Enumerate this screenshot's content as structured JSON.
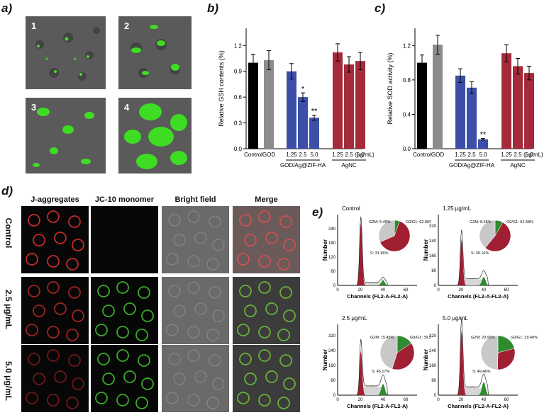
{
  "panels": {
    "a": {
      "letter": "a)",
      "images": [
        "1",
        "2",
        "3",
        "4"
      ]
    },
    "b": {
      "letter": "b)"
    },
    "c": {
      "letter": "c)"
    },
    "d": {
      "letter": "d)",
      "columns": [
        "J-aggregates",
        "JC-10 monomer",
        "Bright field",
        "Merge"
      ],
      "rows": [
        "Control",
        "2.5 μg/mL",
        "5.0 μg/mL"
      ]
    },
    "e": {
      "letter": "e)"
    }
  },
  "chart_data": [
    {
      "id": "b",
      "type": "bar",
      "ylabel": "Relative GSH contents (%)",
      "ylim": [
        0,
        1.4
      ],
      "yticks": [
        "0.0",
        "0.3",
        "0.6",
        "0.9",
        "1.2"
      ],
      "categories": [
        "Control",
        "GOD",
        "1.25",
        "2.5",
        "5.0",
        "1.25",
        "2.5",
        "5.0"
      ],
      "values": [
        1.0,
        1.03,
        0.9,
        0.6,
        0.36,
        1.12,
        0.98,
        1.02
      ],
      "errors": [
        0.1,
        0.11,
        0.09,
        0.05,
        0.03,
        0.1,
        0.09,
        0.1
      ],
      "colors": [
        "#000000",
        "#8c8c8c",
        "#3c4fa8",
        "#3c4fa8",
        "#3c4fa8",
        "#a52a3a",
        "#a52a3a",
        "#a52a3a"
      ],
      "significance": [
        "",
        "",
        "",
        "*",
        "**",
        "",
        "",
        ""
      ],
      "unit_label": "(μg/mL)",
      "group_labels": [
        "GOD/Ag@ZIF-HA",
        "AgNC"
      ]
    },
    {
      "id": "c",
      "type": "bar",
      "ylabel": "Relative SOD activity (%)",
      "ylim": [
        0,
        1.4
      ],
      "yticks": [
        "0.0",
        "0.4",
        "0.8",
        "1.2"
      ],
      "categories": [
        "Control",
        "GOD",
        "1.25",
        "2.5",
        "5.0",
        "1.25",
        "2.5",
        "5.0"
      ],
      "values": [
        1.0,
        1.21,
        0.85,
        0.71,
        0.11,
        1.11,
        0.96,
        0.88
      ],
      "errors": [
        0.09,
        0.11,
        0.08,
        0.07,
        0.01,
        0.1,
        0.09,
        0.08
      ],
      "colors": [
        "#000000",
        "#8c8c8c",
        "#3c4fa8",
        "#3c4fa8",
        "#3c4fa8",
        "#a52a3a",
        "#a52a3a",
        "#a52a3a"
      ],
      "significance": [
        "",
        "",
        "",
        "",
        "**",
        "",
        "",
        ""
      ],
      "unit_label": "(μg/mL)",
      "group_labels": [
        "GOD/Ag@ZIF-HA",
        "AgNC"
      ]
    },
    {
      "id": "e1",
      "type": "area",
      "title": "Control",
      "ylabel": "Number",
      "xlabel": "Channels (FL2-A-FL2-A)",
      "xticks": [
        "0",
        "20",
        "40",
        "60"
      ],
      "yticks": [
        "0",
        "60",
        "120",
        "180",
        "240"
      ],
      "ylim": [
        0,
        300
      ],
      "pie": [
        {
          "name": "G2M",
          "label": "G2M: 5.45%",
          "value": 5.45,
          "color": "#2e8b2e"
        },
        {
          "name": "G0/G1",
          "label": "G0/G1: 62.96%",
          "value": 62.96,
          "color": "#a11f33"
        },
        {
          "name": "S",
          "label": "S: 31.96%",
          "value": 31.96,
          "color": "#c8c8c8"
        }
      ],
      "g1_peak": 265,
      "g2_peak": 22,
      "s_level": 15
    },
    {
      "id": "e2",
      "type": "area",
      "title": "1.25 μg/mL",
      "ylabel": "Number",
      "xlabel": "Channels (FL2-A-FL2-A)",
      "xticks": [
        "0",
        "20",
        "40",
        "60"
      ],
      "yticks": [
        "0",
        "80",
        "160",
        "240",
        "320"
      ],
      "ylim": [
        0,
        380
      ],
      "pie": [
        {
          "name": "G2M",
          "label": "G2M: 8.36%",
          "value": 8.36,
          "color": "#2e8b2e"
        },
        {
          "name": "G0/G1",
          "label": "G0/G1: 52.48%",
          "value": 52.48,
          "color": "#a11f33"
        },
        {
          "name": "S",
          "label": "S: 39.16%",
          "value": 39.16,
          "color": "#c8c8c8"
        }
      ],
      "g1_peak": 250,
      "g2_peak": 45,
      "s_level": 40
    },
    {
      "id": "e3",
      "type": "area",
      "title": "2.5 μg/mL",
      "ylabel": "Number",
      "xlabel": "Channels (FL2-A-FL2-A)",
      "xticks": [
        "0",
        "20",
        "40",
        "60"
      ],
      "yticks": [
        "0",
        "80",
        "160",
        "240",
        "320"
      ],
      "ylim": [
        0,
        380
      ],
      "pie": [
        {
          "name": "G2M",
          "label": "G2M: 15.45%",
          "value": 15.45,
          "color": "#2e8b2e"
        },
        {
          "name": "G0/G1",
          "label": "G0/G1: 39.39%",
          "value": 39.39,
          "color": "#a11f33"
        },
        {
          "name": "S",
          "label": "S: 45.17%",
          "value": 45.17,
          "color": "#c8c8c8"
        }
      ],
      "g1_peak": 240,
      "g2_peak": 60,
      "s_level": 55
    },
    {
      "id": "e4",
      "type": "area",
      "title": "5.0 μg/mL",
      "ylabel": "Number",
      "xlabel": "Channels (FL2-A-FL2-A)",
      "xticks": [
        "0",
        "20",
        "40",
        "60"
      ],
      "yticks": [
        "0",
        "80",
        "160",
        "240",
        "320"
      ],
      "ylim": [
        0,
        380
      ],
      "pie": [
        {
          "name": "G2M",
          "label": "G2M: 20.99%",
          "value": 20.99,
          "color": "#2e8b2e"
        },
        {
          "name": "G0/G1",
          "label": "G0/G1: 29.40%",
          "value": 29.4,
          "color": "#a11f33"
        },
        {
          "name": "S",
          "label": "S: 49.46%",
          "value": 49.46,
          "color": "#c8c8c8"
        }
      ],
      "g1_peak": 350,
      "g2_peak": 70,
      "s_level": 50
    }
  ],
  "colors": {
    "green_fluor": "#4cf02a",
    "red_fluor": "#d12a2a",
    "dark_bg": "#070707"
  }
}
